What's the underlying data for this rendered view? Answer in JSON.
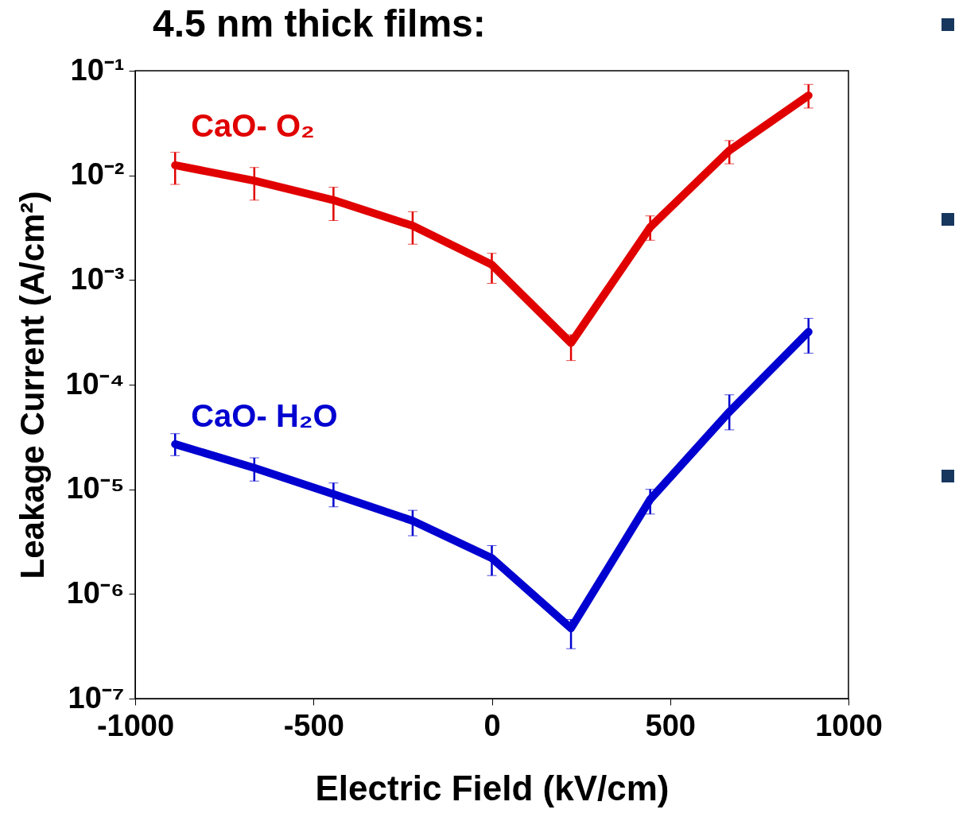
{
  "chart_data": {
    "type": "line",
    "title": "4.5 nm thick films:",
    "xlabel": "Electric Field (kV/cm)",
    "ylabel": "Leakage Current (A/cm²)",
    "log": "y",
    "x": [
      -888,
      -666,
      -444,
      -222,
      0,
      222,
      444,
      666,
      888
    ],
    "xlim": [
      -1000,
      1000
    ],
    "xticks": [
      -1000,
      -500,
      0,
      500,
      1000
    ],
    "ylim": [
      1e-07,
      0.1
    ],
    "yticks": [
      {
        "value": 1e-07,
        "label": "10⁻⁷"
      },
      {
        "value": 1e-06,
        "label": "10⁻⁶"
      },
      {
        "value": 1e-05,
        "label": "10⁻⁵"
      },
      {
        "value": 0.0001,
        "label": "10⁻⁴"
      },
      {
        "value": 0.001,
        "label": "10⁻³"
      },
      {
        "value": 0.01,
        "label": "10⁻²"
      },
      {
        "value": 0.1,
        "label": "10⁻¹"
      }
    ],
    "grid": false,
    "marker": "none",
    "line_style": "solid",
    "series": [
      {
        "name": "CaO- O₂",
        "color": "#e00000",
        "values": [
          0.0125,
          0.0089,
          0.0058,
          0.0033,
          0.0014,
          0.00025,
          0.0032,
          0.0173,
          0.058
        ],
        "errors": [
          [
            0.0082,
            0.0166
          ],
          [
            0.0058,
            0.0119
          ],
          [
            0.0037,
            0.0077
          ],
          [
            0.0022,
            0.0045
          ],
          [
            0.00093,
            0.0018
          ],
          [
            0.00017,
            0.0003
          ],
          [
            0.0024,
            0.0041
          ],
          [
            0.0129,
            0.0215
          ],
          [
            0.044,
            0.074
          ]
        ]
      },
      {
        "name": "CaO- H₂O",
        "color": "#0000d0",
        "values": [
          2.7e-05,
          1.6e-05,
          9e-06,
          5e-06,
          2.2e-06,
          4.7e-07,
          8e-06,
          5.5e-05,
          0.00032
        ],
        "errors": [
          [
            2.1e-05,
            3.4e-05
          ],
          [
            1.2e-05,
            2e-05
          ],
          [
            6.8e-06,
            1.15e-05
          ],
          [
            3.6e-06,
            6.3e-06
          ],
          [
            1.5e-06,
            2.9e-06
          ],
          [
            3e-07,
            5.7e-07
          ],
          [
            5.8e-06,
            1e-05
          ],
          [
            3.7e-05,
            8e-05
          ],
          [
            0.0002,
            0.00043
          ]
        ]
      }
    ]
  }
}
